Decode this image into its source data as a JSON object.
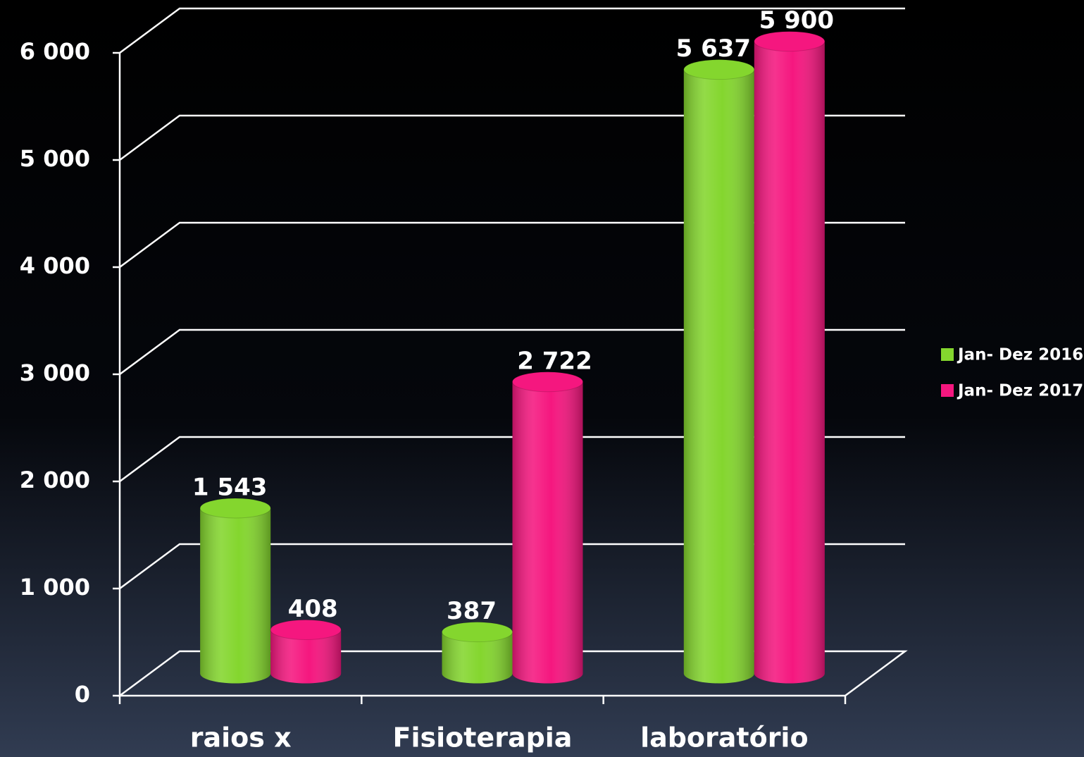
{
  "chart_data": {
    "type": "bar3d",
    "categories": [
      "raios x",
      "Fisioterapia",
      "laboratório"
    ],
    "series": [
      {
        "name": "Jan- Dez 2016",
        "color": "#84d62e",
        "values": [
          1543,
          387,
          5637
        ],
        "value_labels": [
          "1 543",
          "387",
          "5 637"
        ]
      },
      {
        "name": "Jan- Dez 2017",
        "color": "#f5177f",
        "values": [
          408,
          2722,
          5900
        ],
        "value_labels": [
          "408",
          "2 722",
          "5 900"
        ]
      }
    ],
    "ylim": [
      0,
      6000
    ],
    "yticks": [
      0,
      {
        "value": 1000,
        "label": "1 000"
      },
      {
        "value": 2000,
        "label": "2 000"
      },
      {
        "value": 3000,
        "label": "3 000"
      },
      {
        "value": 4000,
        "label": "4 000"
      },
      {
        "value": 5000,
        "label": "5 000"
      },
      {
        "value": 6000,
        "label": "6 000"
      }
    ],
    "grid": true,
    "legend": "right"
  }
}
